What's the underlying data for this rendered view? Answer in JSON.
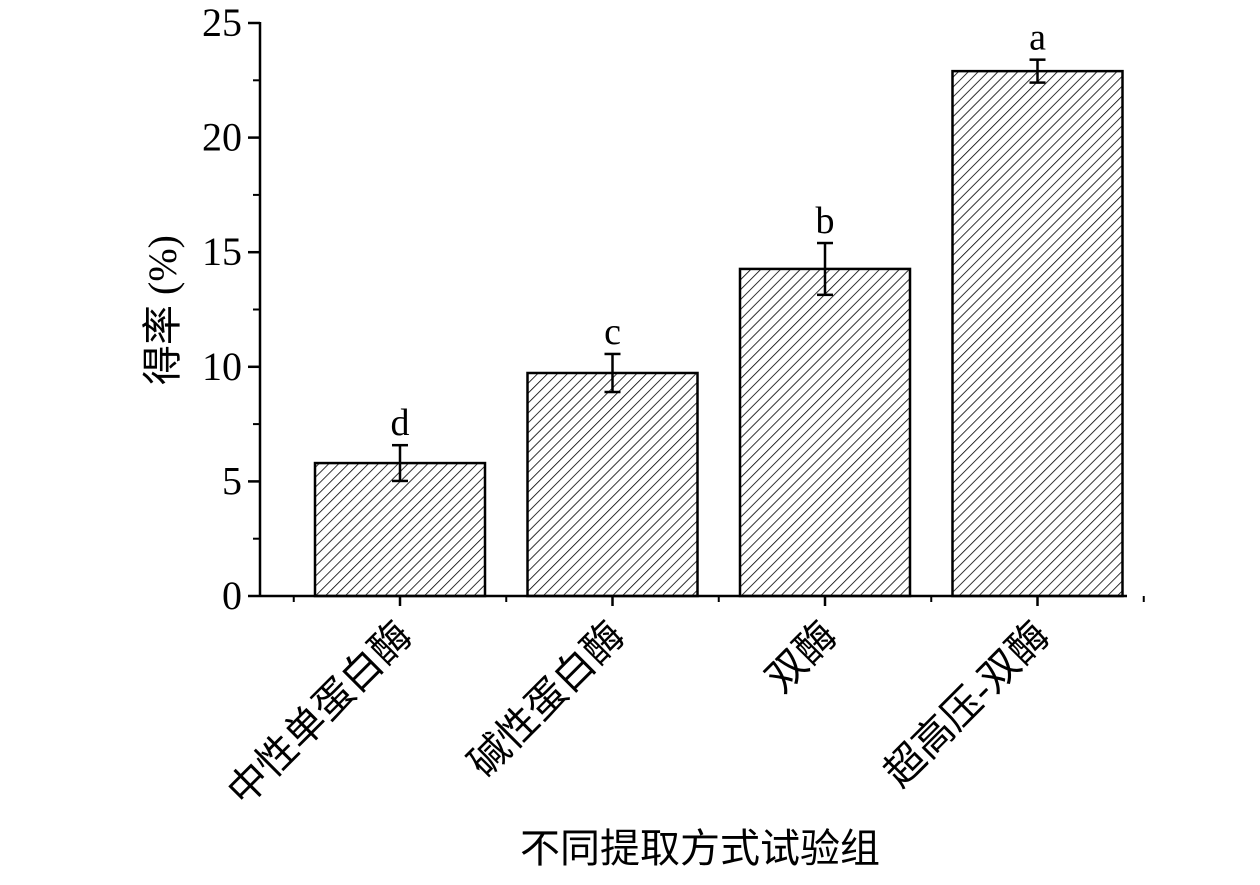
{
  "chart_data": {
    "type": "bar",
    "categories": [
      "中性单蛋白酶",
      "碱性蛋白酶",
      "双酶",
      "超高压-双酶"
    ],
    "values": [
      5.8,
      9.73,
      14.27,
      22.9
    ],
    "errors": [
      0.78,
      0.83,
      1.13,
      0.5
    ],
    "significance": [
      "d",
      "c",
      "b",
      "a"
    ],
    "x_label": "不同提取方式试验组",
    "y_label": "得率 (%)",
    "color": "#000000",
    "hatch": true,
    "ylim": [
      0,
      25
    ],
    "yticks": [
      0,
      5,
      10,
      15,
      20,
      25
    ],
    "grid": false
  }
}
